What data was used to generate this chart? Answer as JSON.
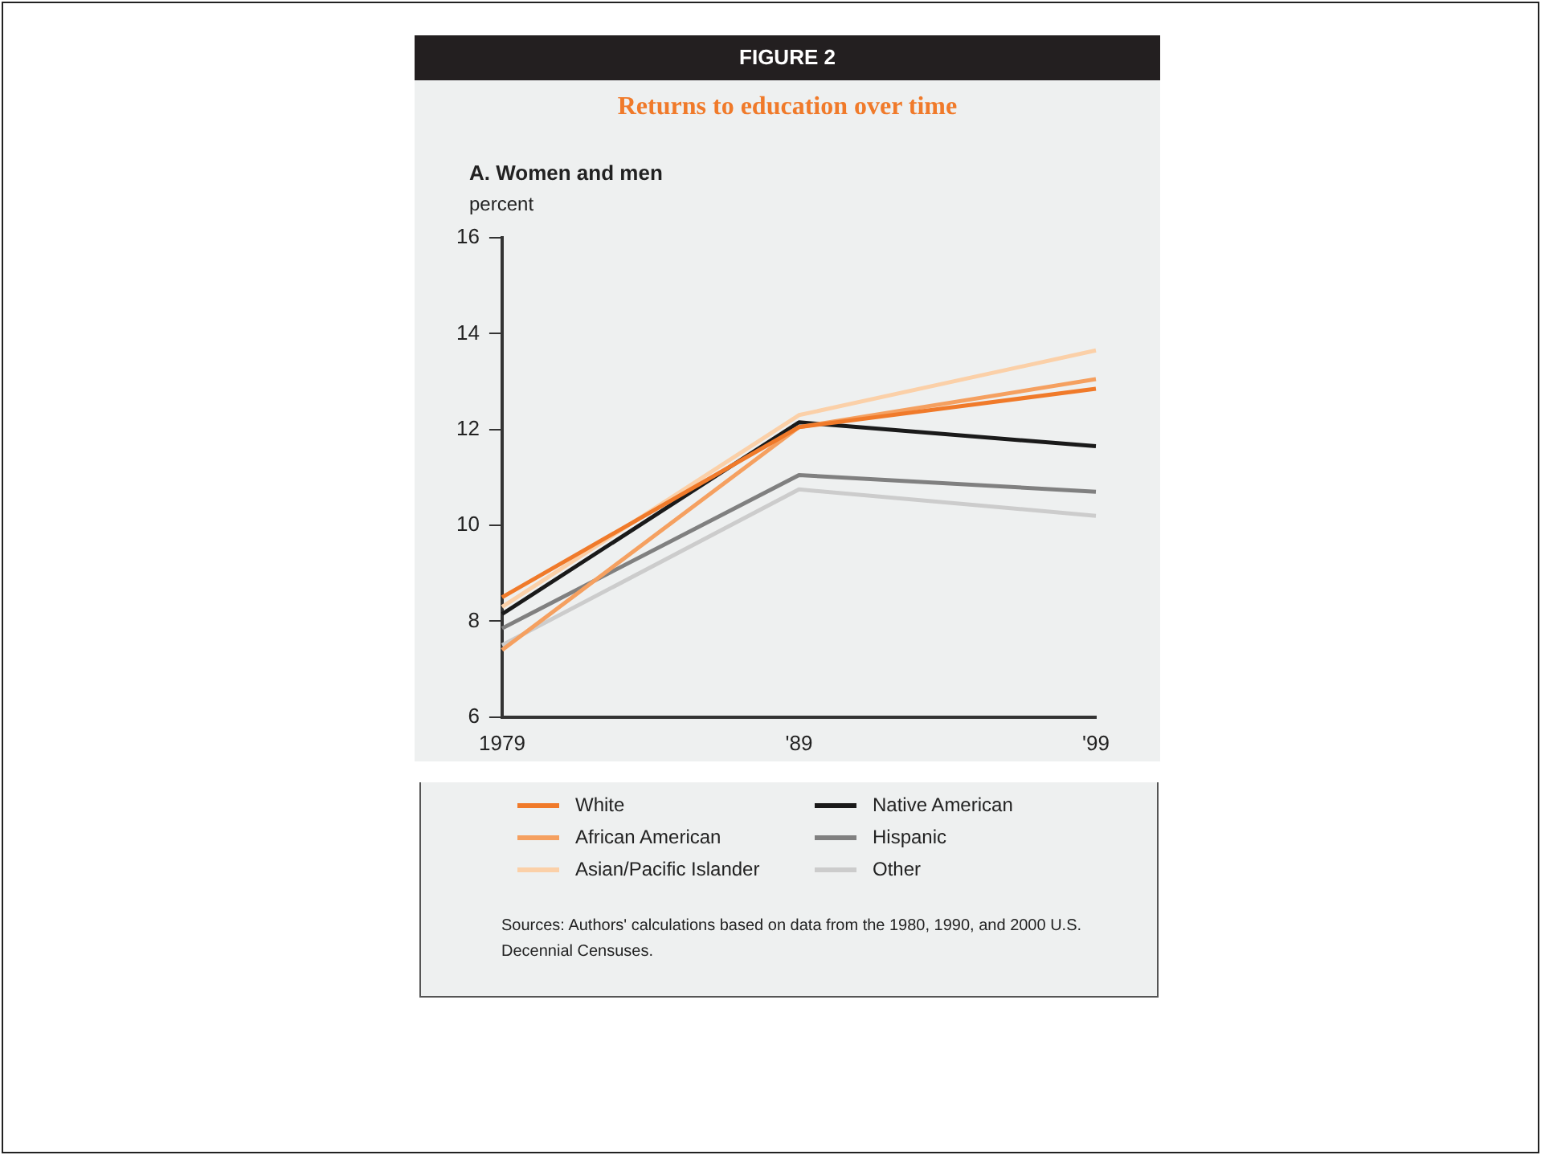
{
  "chart_data": {
    "type": "line",
    "title": "Returns to education over time",
    "subtitle": "A. Women and men",
    "ylabel": "percent",
    "annotations": [
      "FIGURE 2",
      "Sources: Authors' calculations based on data from the 1980, 1990, and 2000 U.S. Decennial Censuses."
    ],
    "categories": [
      "1979",
      "'89",
      "'99"
    ],
    "series": [
      {
        "name": "White",
        "color": "#f07a2a",
        "values": [
          8.5,
          12.05,
          12.85
        ]
      },
      {
        "name": "African American",
        "color": "#f5a060",
        "values": [
          7.4,
          12.05,
          13.05
        ]
      },
      {
        "name": "Asian/Pacific Islander",
        "color": "#fbd0a8",
        "values": [
          8.3,
          12.3,
          13.65
        ]
      },
      {
        "name": "Native American",
        "color": "#1a1a1a",
        "values": [
          8.15,
          12.15,
          11.65
        ]
      },
      {
        "name": "Hispanic",
        "color": "#808080",
        "values": [
          7.85,
          11.05,
          10.7
        ]
      },
      {
        "name": "Other",
        "color": "#cccccc",
        "values": [
          7.5,
          10.75,
          10.2
        ]
      }
    ],
    "ylim": [
      6,
      16
    ],
    "yticks": [
      6,
      8,
      10,
      12,
      14,
      16
    ],
    "grid": false,
    "legend": "bottom",
    "marker": "none",
    "line_style": "solid"
  }
}
